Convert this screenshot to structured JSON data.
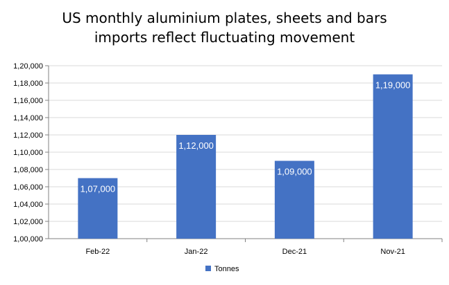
{
  "chart_data": {
    "type": "bar",
    "title_lines": [
      "US monthly aluminium plates, sheets and bars",
      "imports reflect fluctuating movement"
    ],
    "categories": [
      "Feb-22",
      "Jan-22",
      "Dec-21",
      "Nov-21"
    ],
    "series": [
      {
        "name": "Tonnes",
        "values": [
          107000,
          112000,
          109000,
          119000
        ],
        "labels": [
          "1,07,000",
          "1,12,000",
          "1,09,000",
          "1,19,000"
        ]
      }
    ],
    "y_ticks": [
      "1,00,000",
      "1,02,000",
      "1,04,000",
      "1,06,000",
      "1,08,000",
      "1,10,000",
      "1,12,000",
      "1,14,000",
      "1,16,000",
      "1,18,000",
      "1,20,000"
    ],
    "ylim": [
      100000,
      120000
    ],
    "y_step": 2000,
    "grid": true,
    "legend_position": "bottom",
    "bar_color": "#4472C4"
  }
}
